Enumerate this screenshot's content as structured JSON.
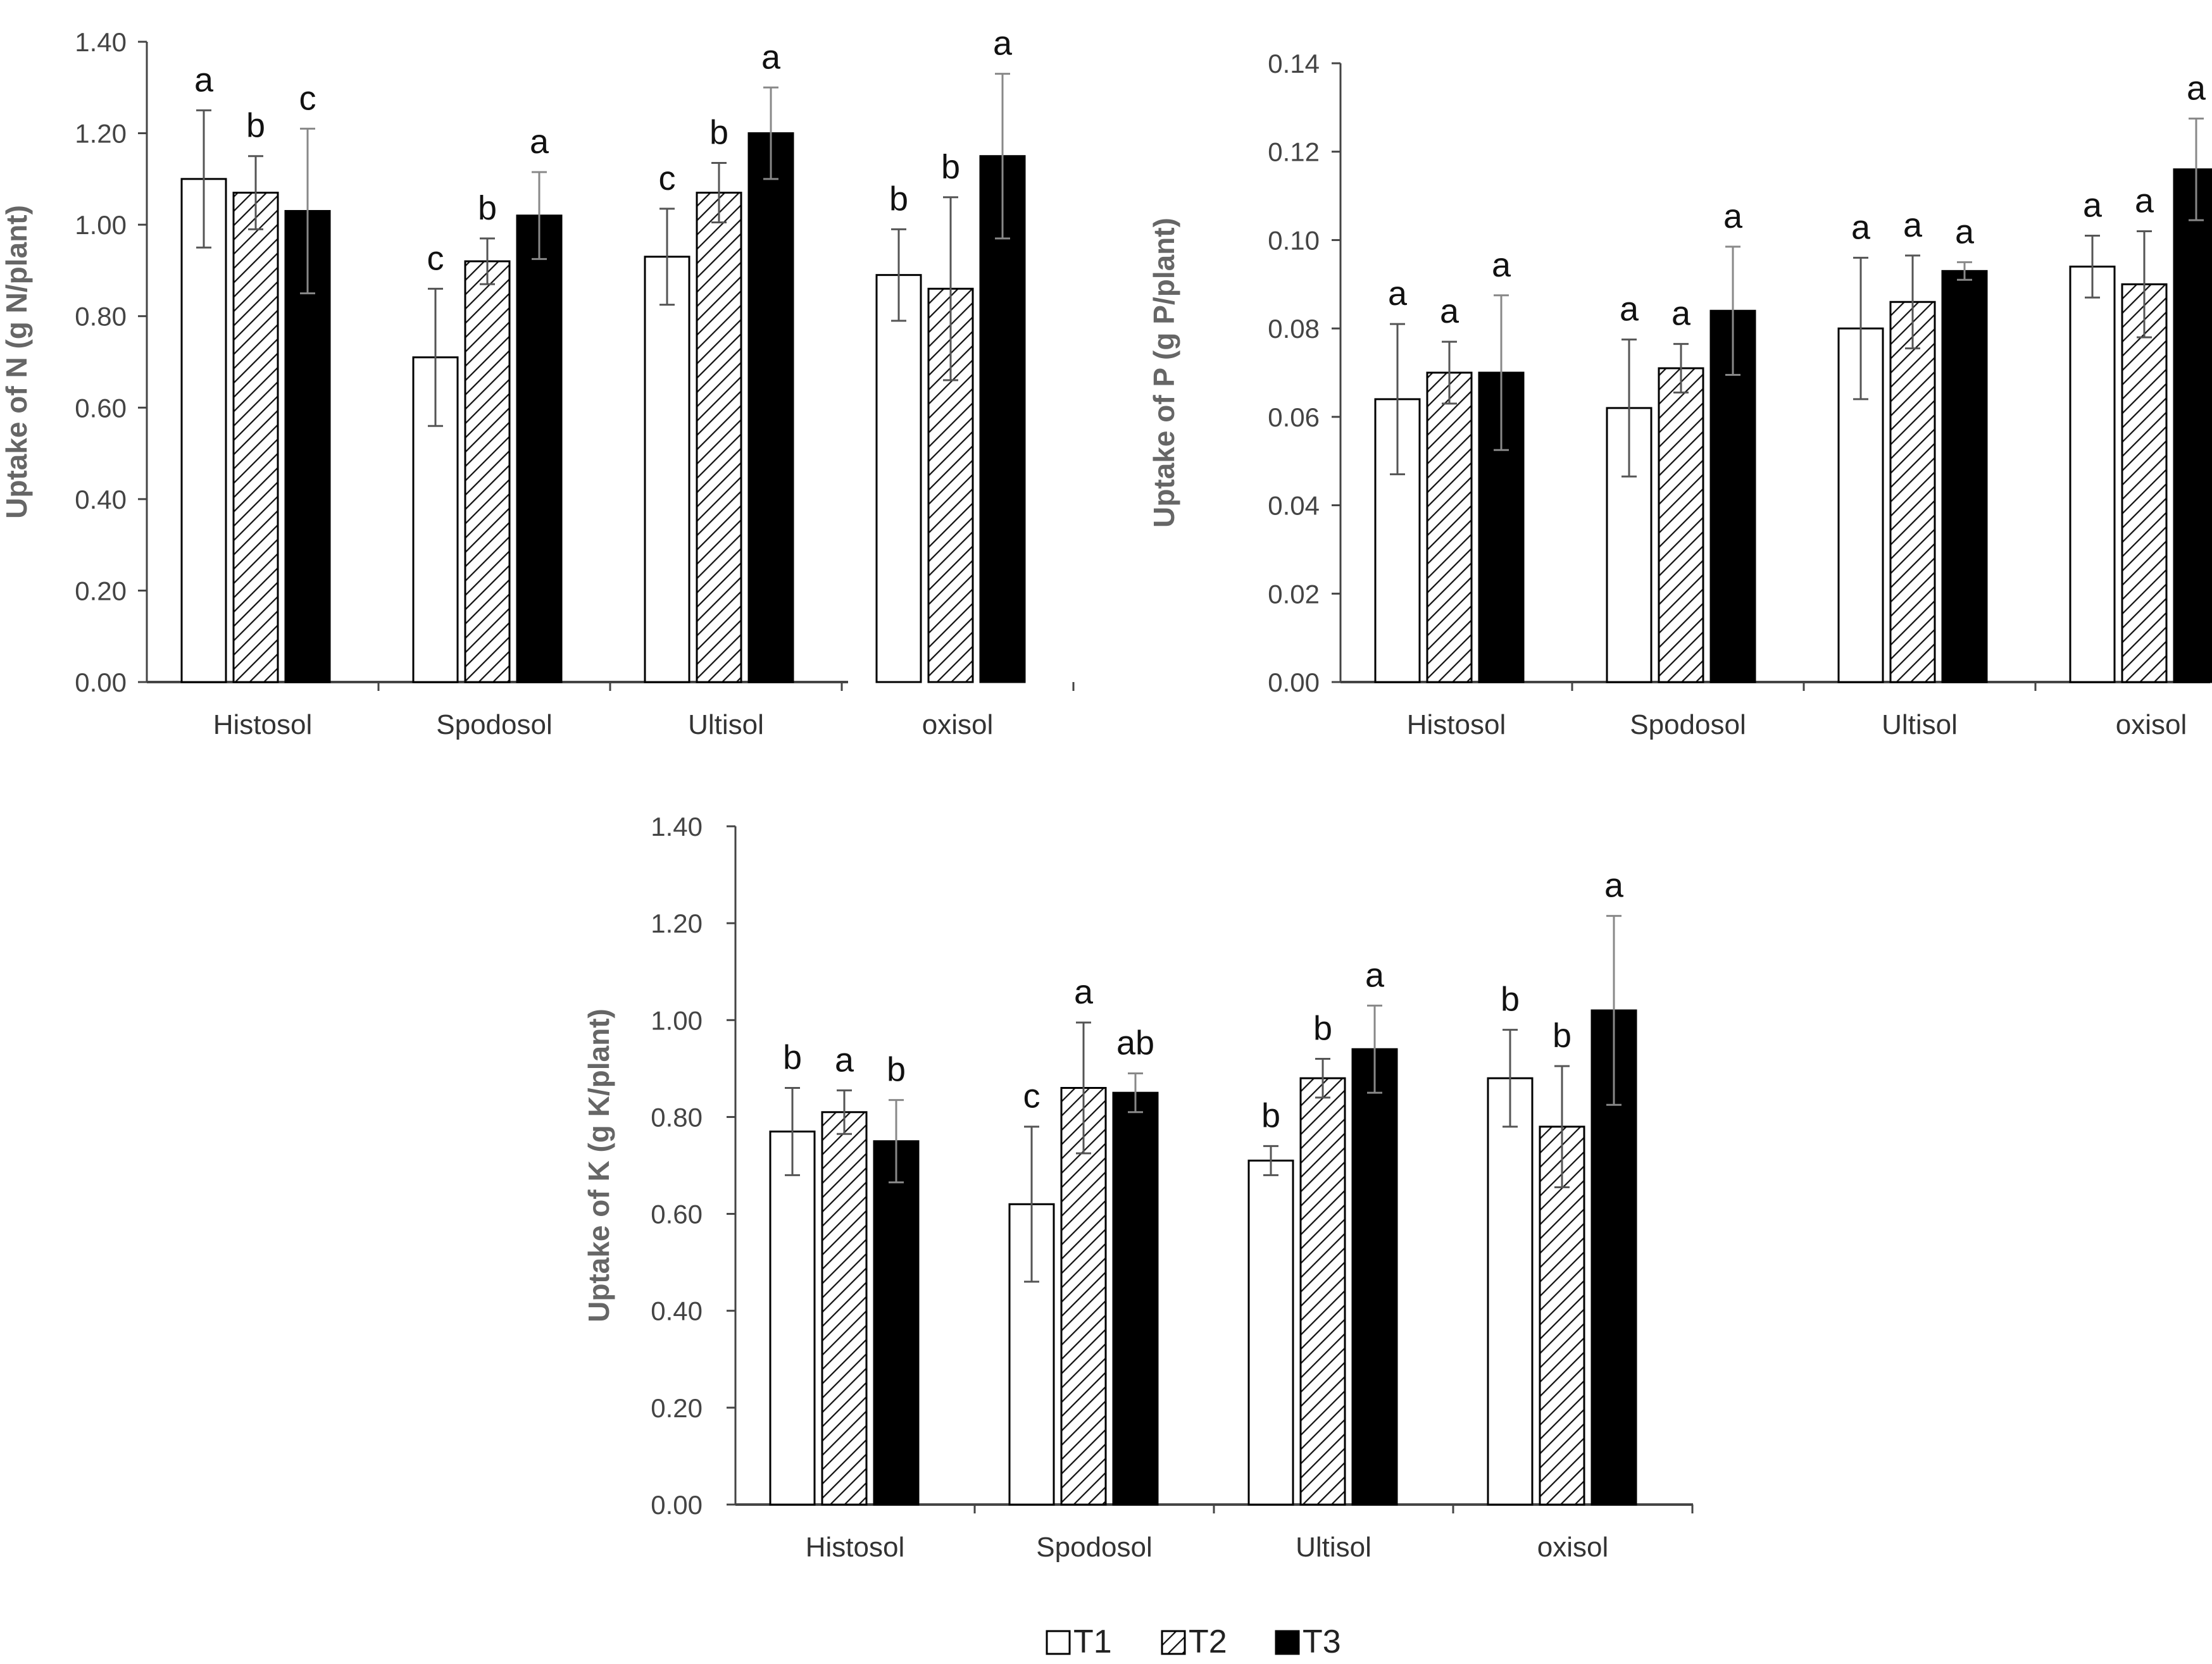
{
  "chart_data": [
    {
      "type": "bar",
      "title": "",
      "xlabel": "",
      "ylabel": "Uptake of N (g N/plant)",
      "categories": [
        "Histosol",
        "Spodosol",
        "Ultisol",
        "oxisol"
      ],
      "ylim": [
        0,
        1.4
      ],
      "yticks": [
        "0.00",
        "0.20",
        "0.40",
        "0.60",
        "0.80",
        "1.00",
        "1.20",
        "1.40"
      ],
      "series": [
        {
          "name": "T1",
          "values": [
            1.1,
            0.71,
            0.93,
            0.89
          ],
          "errors": [
            0.15,
            0.15,
            0.105,
            0.1
          ],
          "letters": [
            "a",
            "c",
            "c",
            "b"
          ]
        },
        {
          "name": "T2",
          "values": [
            1.07,
            0.92,
            1.07,
            0.86
          ],
          "errors": [
            0.08,
            0.05,
            0.065,
            0.2
          ],
          "letters": [
            "b",
            "b",
            "b",
            "b"
          ]
        },
        {
          "name": "T3",
          "values": [
            1.03,
            1.02,
            1.2,
            1.15
          ],
          "errors": [
            0.18,
            0.095,
            0.1,
            0.18
          ],
          "letters": [
            "c",
            "a",
            "a",
            "a"
          ]
        }
      ]
    },
    {
      "type": "bar",
      "title": "",
      "xlabel": "",
      "ylabel": "Uptake of P (g P/plant)",
      "categories": [
        "Histosol",
        "Spodosol",
        "Ultisol",
        "oxisol"
      ],
      "ylim": [
        0,
        0.14
      ],
      "yticks": [
        "0.00",
        "0.02",
        "0.04",
        "0.06",
        "0.08",
        "0.10",
        "0.12",
        "0.14"
      ],
      "series": [
        {
          "name": "T1",
          "values": [
            0.064,
            0.062,
            0.08,
            0.094
          ],
          "errors": [
            0.017,
            0.0155,
            0.016,
            0.007
          ],
          "letters": [
            "a",
            "a",
            "a",
            "a"
          ]
        },
        {
          "name": "T2",
          "values": [
            0.07,
            0.071,
            0.086,
            0.09
          ],
          "errors": [
            0.007,
            0.0055,
            0.0105,
            0.012
          ],
          "letters": [
            "a",
            "a",
            "a",
            "a"
          ]
        },
        {
          "name": "T3",
          "values": [
            0.07,
            0.084,
            0.093,
            0.116
          ],
          "errors": [
            0.0175,
            0.0145,
            0.002,
            0.0115
          ],
          "letters": [
            "a",
            "a",
            "a",
            "a"
          ]
        }
      ]
    },
    {
      "type": "bar",
      "title": "",
      "xlabel": "",
      "ylabel": "Uptake of K (g K/plant)",
      "categories": [
        "Histosol",
        "Spodosol",
        "Ultisol",
        "oxisol"
      ],
      "ylim": [
        0,
        1.4
      ],
      "yticks": [
        "0.00",
        "0.20",
        "0.40",
        "0.60",
        "0.80",
        "1.00",
        "1.20",
        "1.40"
      ],
      "series": [
        {
          "name": "T1",
          "values": [
            0.77,
            0.62,
            0.71,
            0.88
          ],
          "errors": [
            0.09,
            0.16,
            0.03,
            0.1
          ],
          "letters": [
            "b",
            "c",
            "b",
            "b"
          ]
        },
        {
          "name": "T2",
          "values": [
            0.81,
            0.86,
            0.88,
            0.78
          ],
          "errors": [
            0.045,
            0.135,
            0.04,
            0.125
          ],
          "letters": [
            "a",
            "a",
            "b",
            "b"
          ]
        },
        {
          "name": "T3",
          "values": [
            0.75,
            0.85,
            0.94,
            1.02
          ],
          "errors": [
            0.085,
            0.04,
            0.09,
            0.195
          ],
          "letters": [
            "b",
            "ab",
            "a",
            "a"
          ]
        }
      ]
    }
  ],
  "legend": [
    {
      "name": "T1",
      "label": "T1"
    },
    {
      "name": "T2",
      "label": "T2"
    },
    {
      "name": "T3",
      "label": "T3"
    }
  ]
}
